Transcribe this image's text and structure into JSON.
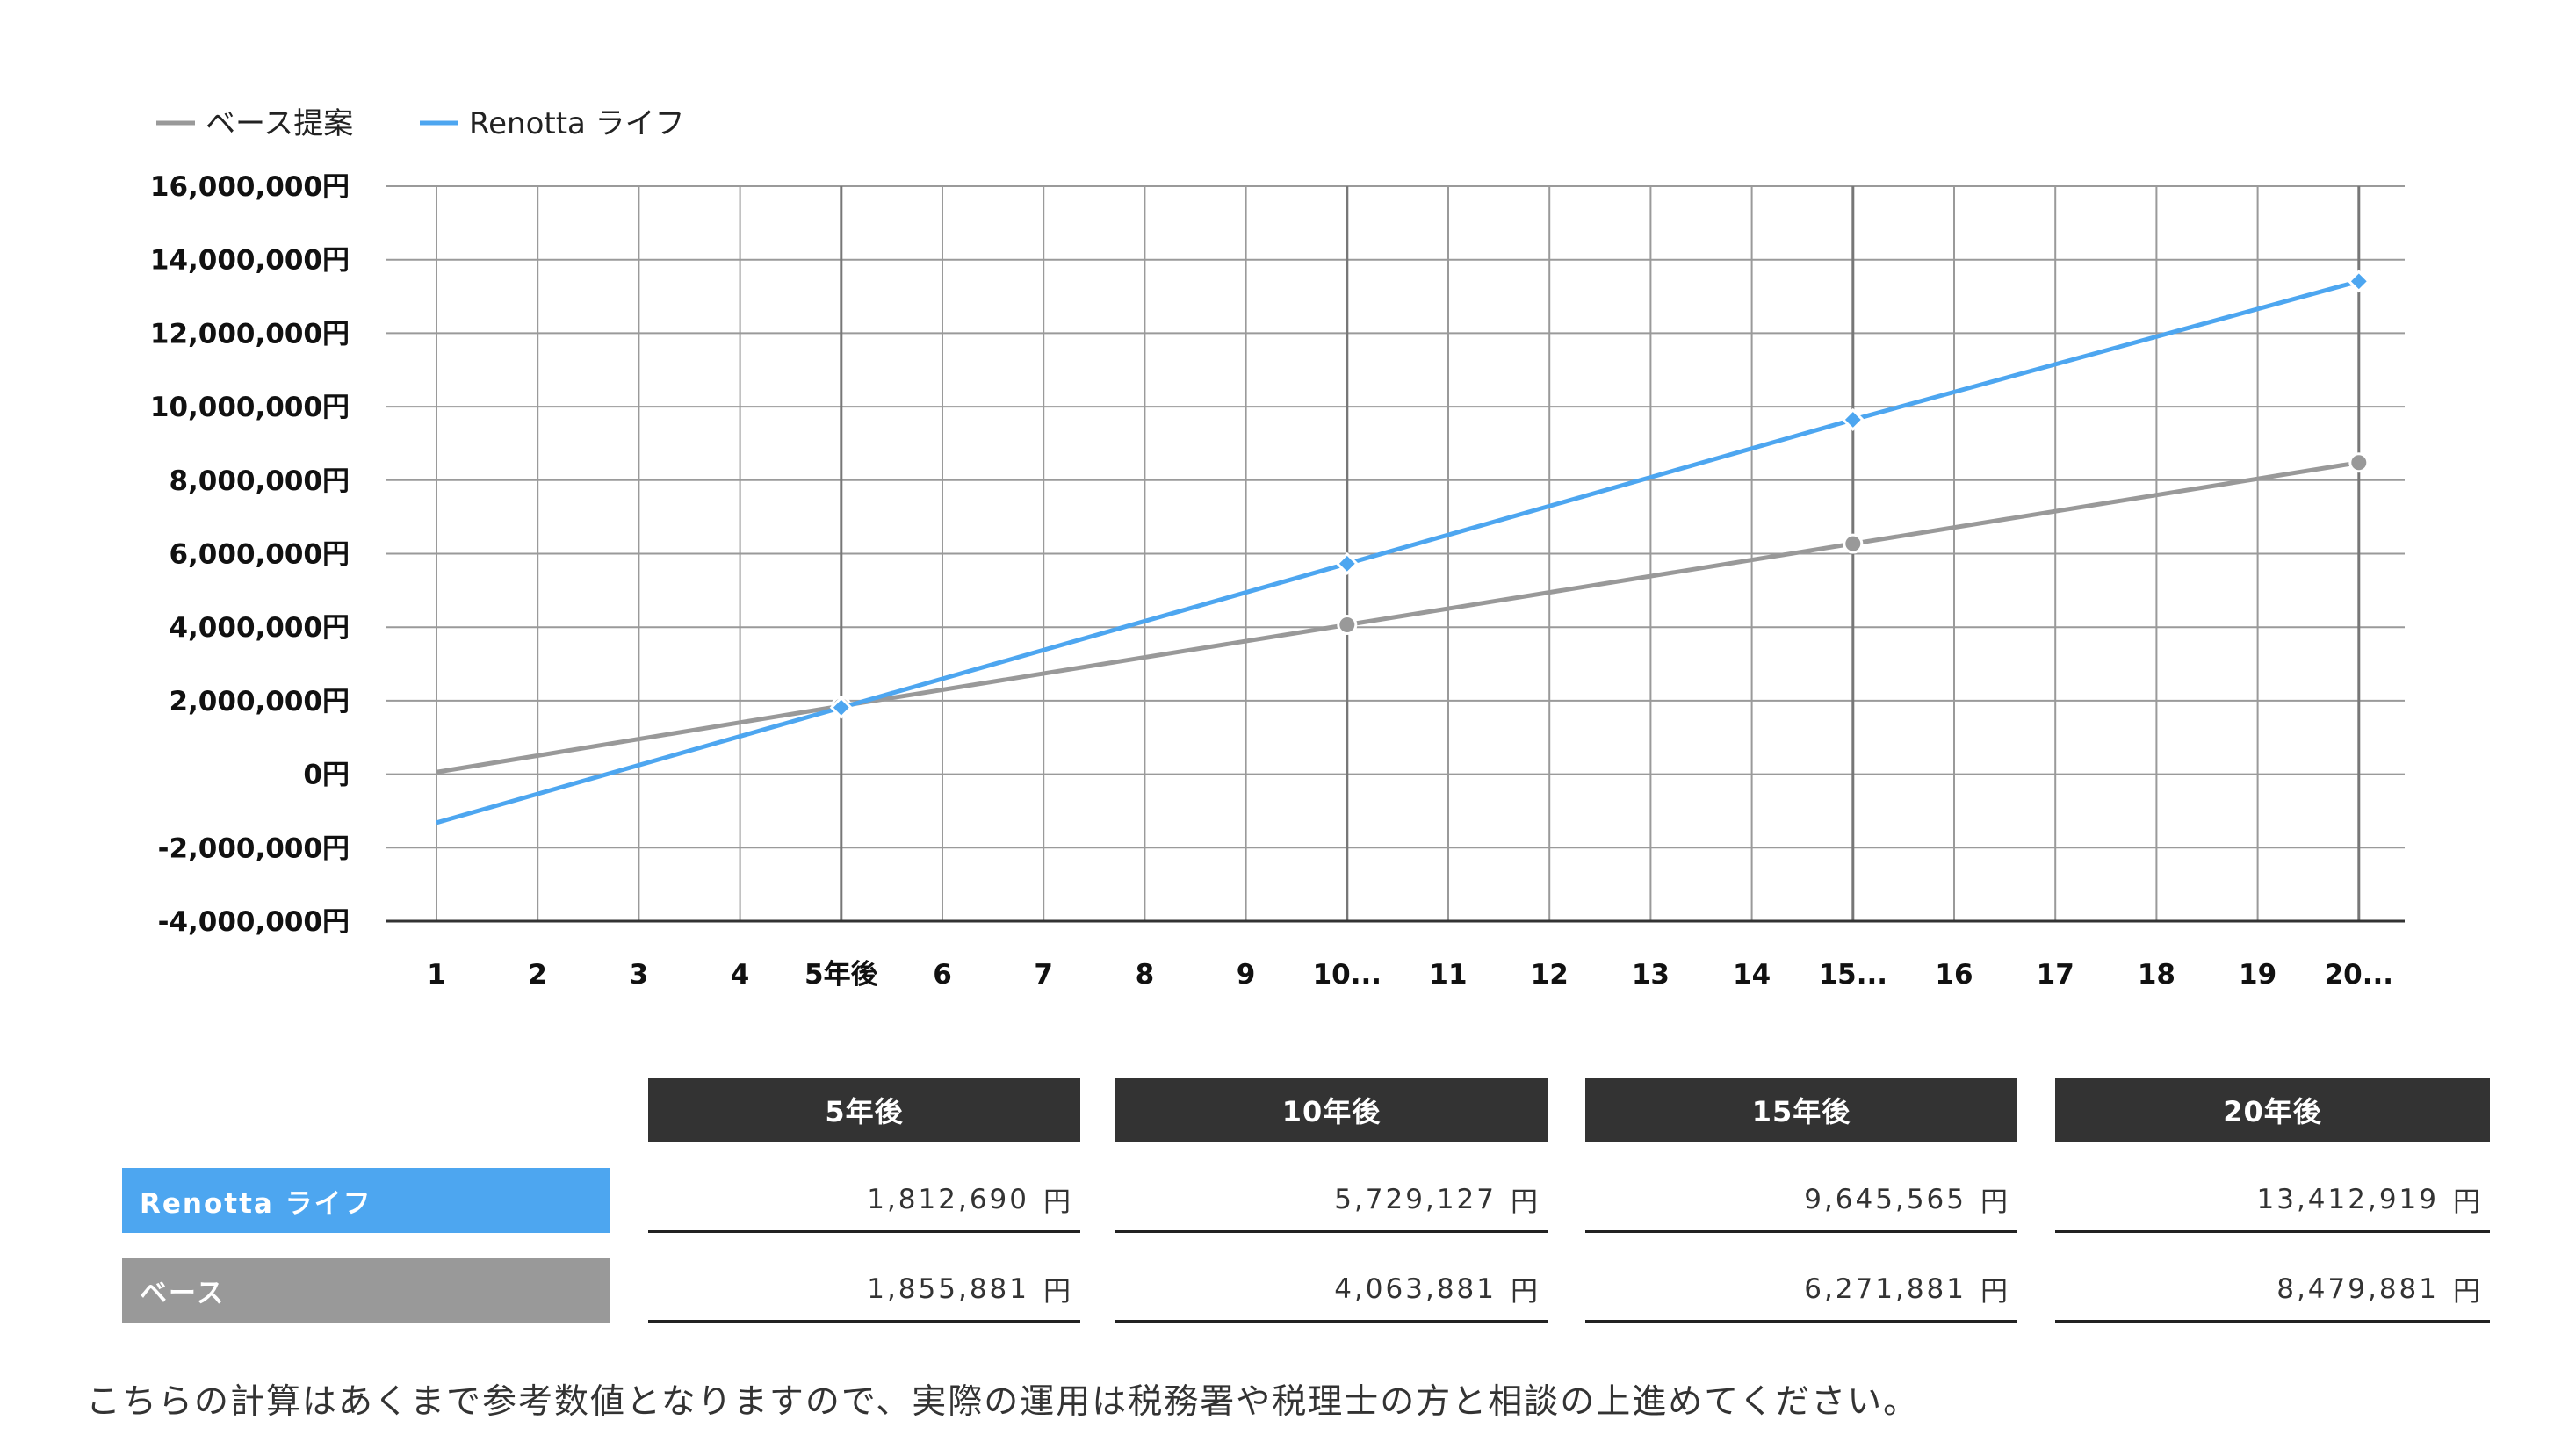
{
  "chart_data": {
    "type": "line",
    "legend": [
      {
        "label": "ベース提案",
        "color": "#999999"
      },
      {
        "label": "Renotta ライフ",
        "color": "#4da6f0"
      }
    ],
    "legend_position": "top-left",
    "grid": true,
    "x_labels": [
      "1",
      "2",
      "3",
      "4",
      "5年後",
      "6",
      "7",
      "8",
      "9",
      "10...",
      "11",
      "12",
      "13",
      "14",
      "15...",
      "16",
      "17",
      "18",
      "19",
      "20..."
    ],
    "ylim": [
      -4000000,
      16000000
    ],
    "y_tick_labels": [
      "16,000,000円",
      "14,000,000円",
      "12,000,000円",
      "10,000,000円",
      "8,000,000円",
      "6,000,000円",
      "4,000,000円",
      "2,000,000円",
      "0円",
      "-2,000,000円",
      "-4,000,000円"
    ],
    "y_ticks": [
      16000000,
      14000000,
      12000000,
      10000000,
      8000000,
      6000000,
      4000000,
      2000000,
      0,
      -2000000,
      -4000000
    ],
    "series": [
      {
        "name": "ベース提案",
        "color": "#999999",
        "marker": "circle",
        "points": [
          {
            "x": 1,
            "y": 55881,
            "marker": false
          },
          {
            "x": 5,
            "y": 1855881,
            "marker": true
          },
          {
            "x": 10,
            "y": 4063881,
            "marker": true
          },
          {
            "x": 15,
            "y": 6271881,
            "marker": true
          },
          {
            "x": 20,
            "y": 8479881,
            "marker": true
          }
        ]
      },
      {
        "name": "Renotta ライフ",
        "color": "#4da6f0",
        "marker": "diamond",
        "points": [
          {
            "x": 1,
            "y": -1320000,
            "marker": false
          },
          {
            "x": 5,
            "y": 1812690,
            "marker": true
          },
          {
            "x": 10,
            "y": 5729127,
            "marker": true
          },
          {
            "x": 15,
            "y": 9645565,
            "marker": true
          },
          {
            "x": 20,
            "y": 13412919,
            "marker": true
          }
        ]
      }
    ]
  },
  "table": {
    "headers": [
      "5年後",
      "10年後",
      "15年後",
      "20年後"
    ],
    "unit": "円",
    "rows": [
      {
        "label": "Renotta ライフ",
        "color": "#4da6f0",
        "values": [
          "1,812,690",
          "5,729,127",
          "9,645,565",
          "13,412,919"
        ]
      },
      {
        "label": "ベース",
        "color": "#999999",
        "values": [
          "1,855,881",
          "4,063,881",
          "6,271,881",
          "8,479,881"
        ]
      }
    ]
  },
  "note": "こちらの計算はあくまで参考数値となりますので、実際の運用は税務署や税理士の方と相談の上進めてください。"
}
